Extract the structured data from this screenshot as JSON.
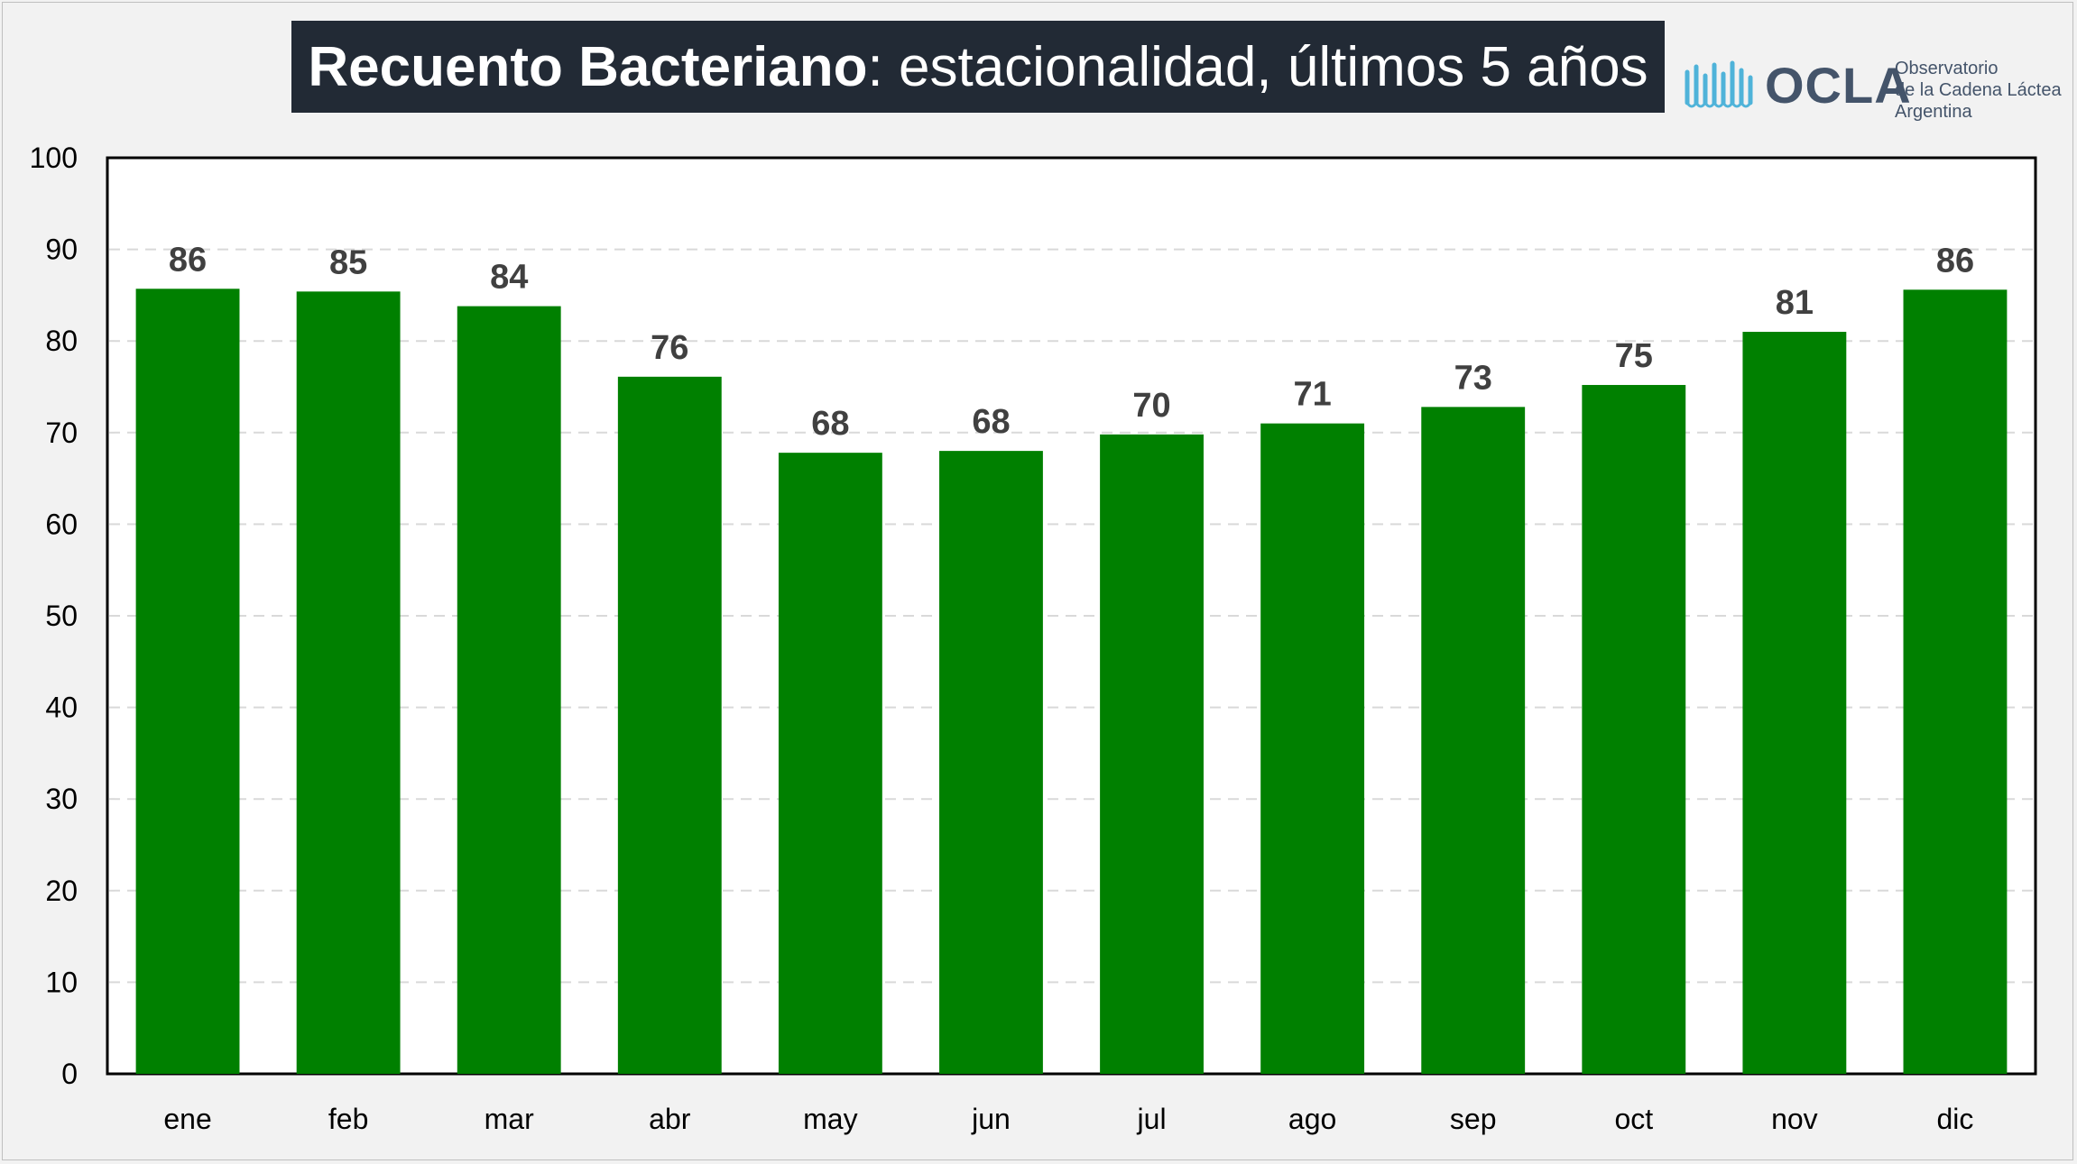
{
  "title": {
    "bold": "Recuento Bacteriano",
    "rest": ": estacionalidad, últimos 5 años"
  },
  "logo": {
    "name": "OCLA",
    "line1": "Observatorio",
    "line2": "de la Cadena Láctea",
    "line3": "Argentina"
  },
  "colors": {
    "bar": "#008000",
    "title_bg": "#222a35",
    "gridline": "#d9d9d9",
    "logo_wave": "#4fb3d9"
  },
  "chart_data": {
    "type": "bar",
    "title": "Recuento Bacteriano: estacionalidad, últimos 5 años",
    "xlabel": "",
    "ylabel": "",
    "categories": [
      "ene",
      "feb",
      "mar",
      "abr",
      "may",
      "jun",
      "jul",
      "ago",
      "sep",
      "oct",
      "nov",
      "dic"
    ],
    "values": [
      85.7,
      85.4,
      83.8,
      76.1,
      67.8,
      68.0,
      69.8,
      71.0,
      72.8,
      75.2,
      81.0,
      85.6
    ],
    "data_labels": [
      "86",
      "85",
      "84",
      "76",
      "68",
      "68",
      "70",
      "71",
      "73",
      "75",
      "81",
      "86"
    ],
    "ylim": [
      0,
      100
    ],
    "yticks": [
      0,
      10,
      20,
      30,
      40,
      50,
      60,
      70,
      80,
      90,
      100
    ],
    "grid": true,
    "legend": "none"
  }
}
